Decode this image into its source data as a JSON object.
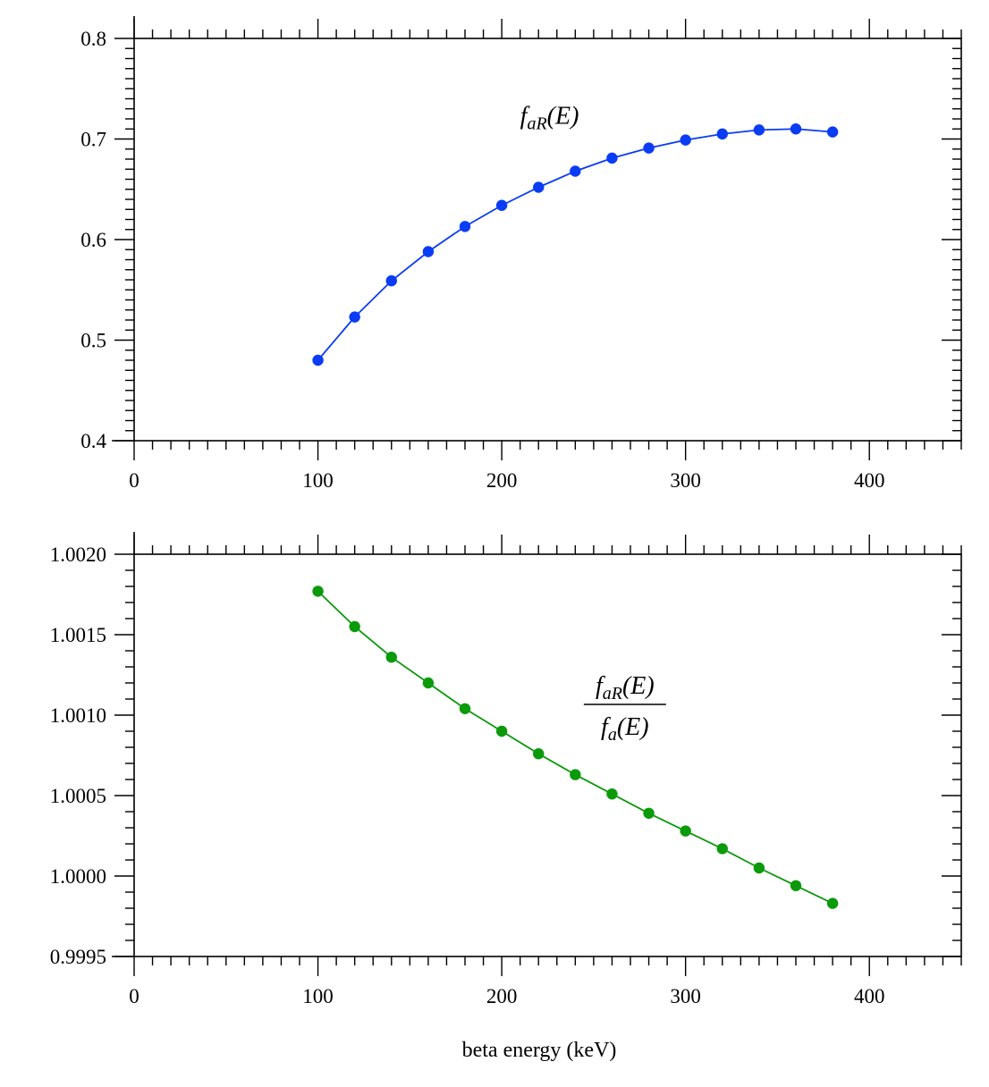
{
  "figure": {
    "xlabel": "beta energy (keV)"
  },
  "chart_data": [
    {
      "type": "line",
      "xlim": [
        0,
        450
      ],
      "ylim": [
        0.4,
        0.8
      ],
      "xticks": [
        0,
        100,
        200,
        300,
        400
      ],
      "yticks": [
        0.4,
        0.5,
        0.6,
        0.7,
        0.8
      ],
      "xtick_labels": [
        "0",
        "100",
        "200",
        "300",
        "400"
      ],
      "ytick_labels": [
        "0.4",
        "0.5",
        "0.6",
        "0.7",
        "0.8"
      ],
      "grid": false,
      "color": "#0a3cf5",
      "annotation": {
        "text": "faR(E)",
        "main": "f",
        "sub": "aR",
        "arg": "(E)",
        "x": 210,
        "y": 0.715
      },
      "series": [
        {
          "x": [
            100,
            120,
            140,
            160,
            180,
            200,
            220,
            240,
            260,
            280,
            300,
            320,
            340,
            360,
            380
          ],
          "y": [
            0.48,
            0.523,
            0.559,
            0.588,
            0.613,
            0.634,
            0.652,
            0.668,
            0.681,
            0.691,
            0.699,
            0.705,
            0.709,
            0.71,
            0.707
          ]
        }
      ]
    },
    {
      "type": "line",
      "xlim": [
        0,
        450
      ],
      "ylim": [
        0.9995,
        1.002
      ],
      "xticks": [
        0,
        100,
        200,
        300,
        400
      ],
      "yticks": [
        0.9995,
        1.0,
        1.0005,
        1.001,
        1.0015,
        1.002
      ],
      "xtick_labels": [
        "0",
        "100",
        "200",
        "300",
        "400"
      ],
      "ytick_labels": [
        "0.9995",
        "1.0000",
        "1.0005",
        "1.0010",
        "1.0015",
        "1.0020"
      ],
      "grid": false,
      "color": "#0a9a0a",
      "xlabel": "beta energy (keV)",
      "annotation": {
        "text": "faR(E) / fa(E)",
        "num_main": "f",
        "num_sub": "aR",
        "num_arg": "(E)",
        "den_main": "f",
        "den_sub": "a",
        "den_arg": "(E)",
        "x": 267,
        "y": 1.001
      },
      "series": [
        {
          "x": [
            100,
            120,
            140,
            160,
            180,
            200,
            220,
            240,
            260,
            280,
            300,
            320,
            340,
            360,
            380
          ],
          "y": [
            1.00177,
            1.00155,
            1.00136,
            1.0012,
            1.00104,
            1.0009,
            1.00076,
            1.00063,
            1.00051,
            1.00039,
            1.00028,
            1.00017,
            1.00005,
            0.99994,
            0.99983
          ]
        }
      ]
    }
  ]
}
